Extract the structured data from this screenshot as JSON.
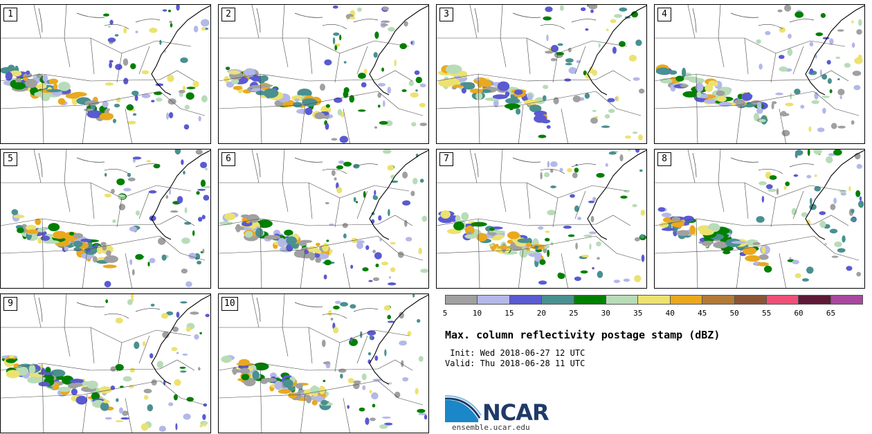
{
  "panels": [
    {
      "label": "1"
    },
    {
      "label": "2"
    },
    {
      "label": "3"
    },
    {
      "label": "4"
    },
    {
      "label": "5"
    },
    {
      "label": "6"
    },
    {
      "label": "7"
    },
    {
      "label": "8"
    },
    {
      "label": "9"
    },
    {
      "label": "10"
    }
  ],
  "colorbar": {
    "colors": [
      "#a0a0a0",
      "#b4b8e8",
      "#5a5ad2",
      "#4a9090",
      "#008000",
      "#b8dcb8",
      "#ece270",
      "#eaa81e",
      "#b27a34",
      "#8c5436",
      "#ee5078",
      "#5e1a36",
      "#a8489e"
    ],
    "ticks": [
      "5",
      "10",
      "15",
      "20",
      "25",
      "30",
      "35",
      "40",
      "45",
      "50",
      "55",
      "60",
      "65"
    ]
  },
  "title": "Max. column reflectivity postage stamp (dBZ)",
  "init_text": " Init: Wed 2018-06-27 12 UTC",
  "valid_text": "Valid: Thu 2018-06-28 11 UTC",
  "logo_text": "NCAR",
  "website": "ensemble.ucar.edu"
}
